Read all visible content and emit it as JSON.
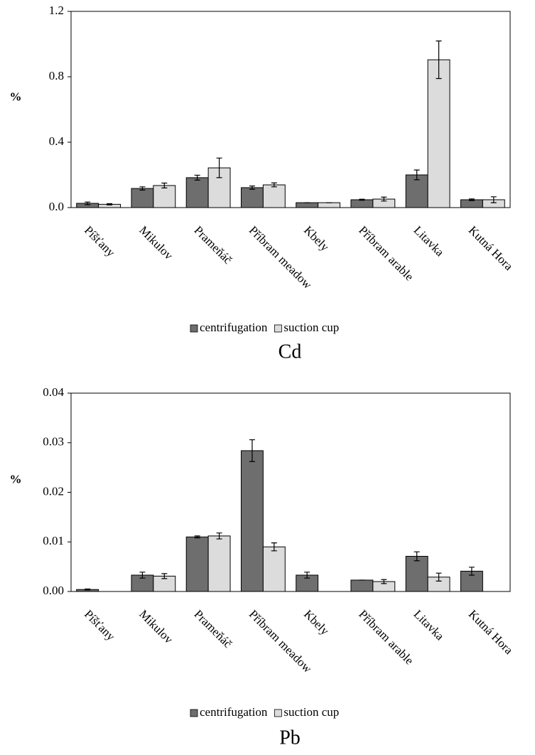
{
  "chart_data": [
    {
      "type": "bar",
      "title": "Cd",
      "y_label": "%",
      "categories": [
        "Píšťany",
        "Mikulov",
        "Prameňáč",
        "Příbram meadow",
        "Kbely",
        "Příbram arable",
        "Litavka",
        "Kutná Hora"
      ],
      "series": [
        {
          "name": "centrifugation",
          "color": "#6e6e6e",
          "values": [
            0.026,
            0.117,
            0.183,
            0.122,
            0.03,
            0.048,
            0.2,
            0.048
          ],
          "errors": [
            0.008,
            0.01,
            0.015,
            0.01,
            0,
            0.003,
            0.03,
            0.005
          ]
        },
        {
          "name": "suction cup",
          "color": "#dcdcdc",
          "values": [
            0.02,
            0.135,
            0.243,
            0.139,
            0.03,
            0.052,
            0.904,
            0.048
          ],
          "errors": [
            0.004,
            0.015,
            0.06,
            0.012,
            0,
            0.012,
            0.115,
            0.018
          ]
        }
      ],
      "ylim": [
        0,
        1.2
      ],
      "yticks": [
        {
          "value": 0,
          "label": "0.0"
        },
        0.4,
        0.8,
        1.2
      ]
    },
    {
      "type": "bar",
      "title": "Pb",
      "y_label": "%",
      "categories": [
        "Píšťany",
        "Mikulov",
        "Prameňáč",
        "Příbram meadow",
        "Kbely",
        "Příbram arable",
        "Litavka",
        "Kutná Hora"
      ],
      "series": [
        {
          "name": "centrifugation",
          "color": "#6e6e6e",
          "values": [
            0.0004,
            0.0033,
            0.011,
            0.0284,
            0.0033,
            0.0023,
            0.0071,
            0.0041
          ],
          "errors": [
            0.0001,
            0.0006,
            0.0002,
            0.0022,
            0.0006,
            0,
            0.0009,
            0.0008
          ]
        },
        {
          "name": "suction cup",
          "color": "#dcdcdc",
          "values": [
            null,
            0.0031,
            0.0112,
            0.009,
            null,
            0.002,
            0.0029,
            null
          ],
          "errors": [
            null,
            0.0005,
            0.0006,
            0.0008,
            null,
            0.0004,
            0.0008,
            null
          ]
        }
      ],
      "ylim": [
        0,
        0.04
      ],
      "yticks": [
        {
          "value": 0,
          "label": "0.00"
        },
        0.01,
        0.02,
        0.03,
        0.04
      ]
    }
  ]
}
